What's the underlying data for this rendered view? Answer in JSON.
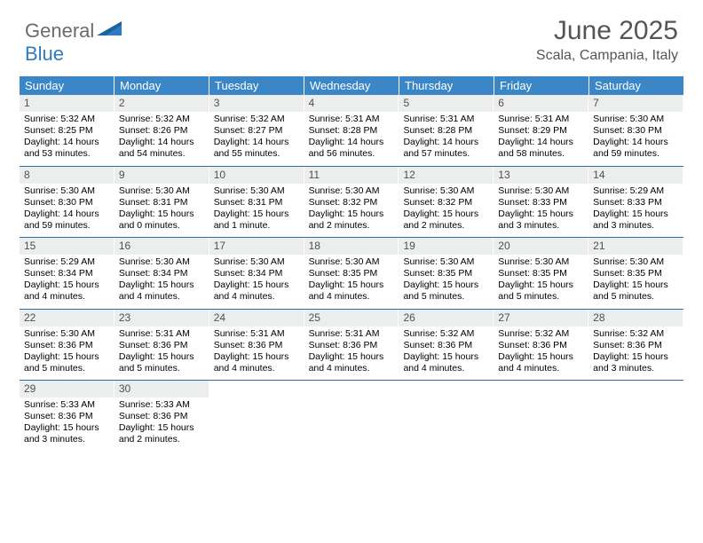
{
  "logo": {
    "general": "General",
    "blue": "Blue"
  },
  "title": "June 2025",
  "location": "Scala, Campania, Italy",
  "colors": {
    "header_bg": "#3b86c7",
    "header_text": "#ffffff",
    "daynum_bg": "#eceded",
    "daynum_text": "#505050",
    "week_border": "#2f6aa8",
    "title_text": "#555555",
    "logo_gray": "#6b6b6b",
    "logo_blue": "#2f7bbf"
  },
  "weekdays": [
    "Sunday",
    "Monday",
    "Tuesday",
    "Wednesday",
    "Thursday",
    "Friday",
    "Saturday"
  ],
  "weeks": [
    [
      {
        "n": "1",
        "sr": "Sunrise: 5:32 AM",
        "ss": "Sunset: 8:25 PM",
        "dl": "Daylight: 14 hours and 53 minutes."
      },
      {
        "n": "2",
        "sr": "Sunrise: 5:32 AM",
        "ss": "Sunset: 8:26 PM",
        "dl": "Daylight: 14 hours and 54 minutes."
      },
      {
        "n": "3",
        "sr": "Sunrise: 5:32 AM",
        "ss": "Sunset: 8:27 PM",
        "dl": "Daylight: 14 hours and 55 minutes."
      },
      {
        "n": "4",
        "sr": "Sunrise: 5:31 AM",
        "ss": "Sunset: 8:28 PM",
        "dl": "Daylight: 14 hours and 56 minutes."
      },
      {
        "n": "5",
        "sr": "Sunrise: 5:31 AM",
        "ss": "Sunset: 8:28 PM",
        "dl": "Daylight: 14 hours and 57 minutes."
      },
      {
        "n": "6",
        "sr": "Sunrise: 5:31 AM",
        "ss": "Sunset: 8:29 PM",
        "dl": "Daylight: 14 hours and 58 minutes."
      },
      {
        "n": "7",
        "sr": "Sunrise: 5:30 AM",
        "ss": "Sunset: 8:30 PM",
        "dl": "Daylight: 14 hours and 59 minutes."
      }
    ],
    [
      {
        "n": "8",
        "sr": "Sunrise: 5:30 AM",
        "ss": "Sunset: 8:30 PM",
        "dl": "Daylight: 14 hours and 59 minutes."
      },
      {
        "n": "9",
        "sr": "Sunrise: 5:30 AM",
        "ss": "Sunset: 8:31 PM",
        "dl": "Daylight: 15 hours and 0 minutes."
      },
      {
        "n": "10",
        "sr": "Sunrise: 5:30 AM",
        "ss": "Sunset: 8:31 PM",
        "dl": "Daylight: 15 hours and 1 minute."
      },
      {
        "n": "11",
        "sr": "Sunrise: 5:30 AM",
        "ss": "Sunset: 8:32 PM",
        "dl": "Daylight: 15 hours and 2 minutes."
      },
      {
        "n": "12",
        "sr": "Sunrise: 5:30 AM",
        "ss": "Sunset: 8:32 PM",
        "dl": "Daylight: 15 hours and 2 minutes."
      },
      {
        "n": "13",
        "sr": "Sunrise: 5:30 AM",
        "ss": "Sunset: 8:33 PM",
        "dl": "Daylight: 15 hours and 3 minutes."
      },
      {
        "n": "14",
        "sr": "Sunrise: 5:29 AM",
        "ss": "Sunset: 8:33 PM",
        "dl": "Daylight: 15 hours and 3 minutes."
      }
    ],
    [
      {
        "n": "15",
        "sr": "Sunrise: 5:29 AM",
        "ss": "Sunset: 8:34 PM",
        "dl": "Daylight: 15 hours and 4 minutes."
      },
      {
        "n": "16",
        "sr": "Sunrise: 5:30 AM",
        "ss": "Sunset: 8:34 PM",
        "dl": "Daylight: 15 hours and 4 minutes."
      },
      {
        "n": "17",
        "sr": "Sunrise: 5:30 AM",
        "ss": "Sunset: 8:34 PM",
        "dl": "Daylight: 15 hours and 4 minutes."
      },
      {
        "n": "18",
        "sr": "Sunrise: 5:30 AM",
        "ss": "Sunset: 8:35 PM",
        "dl": "Daylight: 15 hours and 4 minutes."
      },
      {
        "n": "19",
        "sr": "Sunrise: 5:30 AM",
        "ss": "Sunset: 8:35 PM",
        "dl": "Daylight: 15 hours and 5 minutes."
      },
      {
        "n": "20",
        "sr": "Sunrise: 5:30 AM",
        "ss": "Sunset: 8:35 PM",
        "dl": "Daylight: 15 hours and 5 minutes."
      },
      {
        "n": "21",
        "sr": "Sunrise: 5:30 AM",
        "ss": "Sunset: 8:35 PM",
        "dl": "Daylight: 15 hours and 5 minutes."
      }
    ],
    [
      {
        "n": "22",
        "sr": "Sunrise: 5:30 AM",
        "ss": "Sunset: 8:36 PM",
        "dl": "Daylight: 15 hours and 5 minutes."
      },
      {
        "n": "23",
        "sr": "Sunrise: 5:31 AM",
        "ss": "Sunset: 8:36 PM",
        "dl": "Daylight: 15 hours and 5 minutes."
      },
      {
        "n": "24",
        "sr": "Sunrise: 5:31 AM",
        "ss": "Sunset: 8:36 PM",
        "dl": "Daylight: 15 hours and 4 minutes."
      },
      {
        "n": "25",
        "sr": "Sunrise: 5:31 AM",
        "ss": "Sunset: 8:36 PM",
        "dl": "Daylight: 15 hours and 4 minutes."
      },
      {
        "n": "26",
        "sr": "Sunrise: 5:32 AM",
        "ss": "Sunset: 8:36 PM",
        "dl": "Daylight: 15 hours and 4 minutes."
      },
      {
        "n": "27",
        "sr": "Sunrise: 5:32 AM",
        "ss": "Sunset: 8:36 PM",
        "dl": "Daylight: 15 hours and 4 minutes."
      },
      {
        "n": "28",
        "sr": "Sunrise: 5:32 AM",
        "ss": "Sunset: 8:36 PM",
        "dl": "Daylight: 15 hours and 3 minutes."
      }
    ],
    [
      {
        "n": "29",
        "sr": "Sunrise: 5:33 AM",
        "ss": "Sunset: 8:36 PM",
        "dl": "Daylight: 15 hours and 3 minutes."
      },
      {
        "n": "30",
        "sr": "Sunrise: 5:33 AM",
        "ss": "Sunset: 8:36 PM",
        "dl": "Daylight: 15 hours and 2 minutes."
      },
      {
        "empty": true
      },
      {
        "empty": true
      },
      {
        "empty": true
      },
      {
        "empty": true
      },
      {
        "empty": true
      }
    ]
  ]
}
